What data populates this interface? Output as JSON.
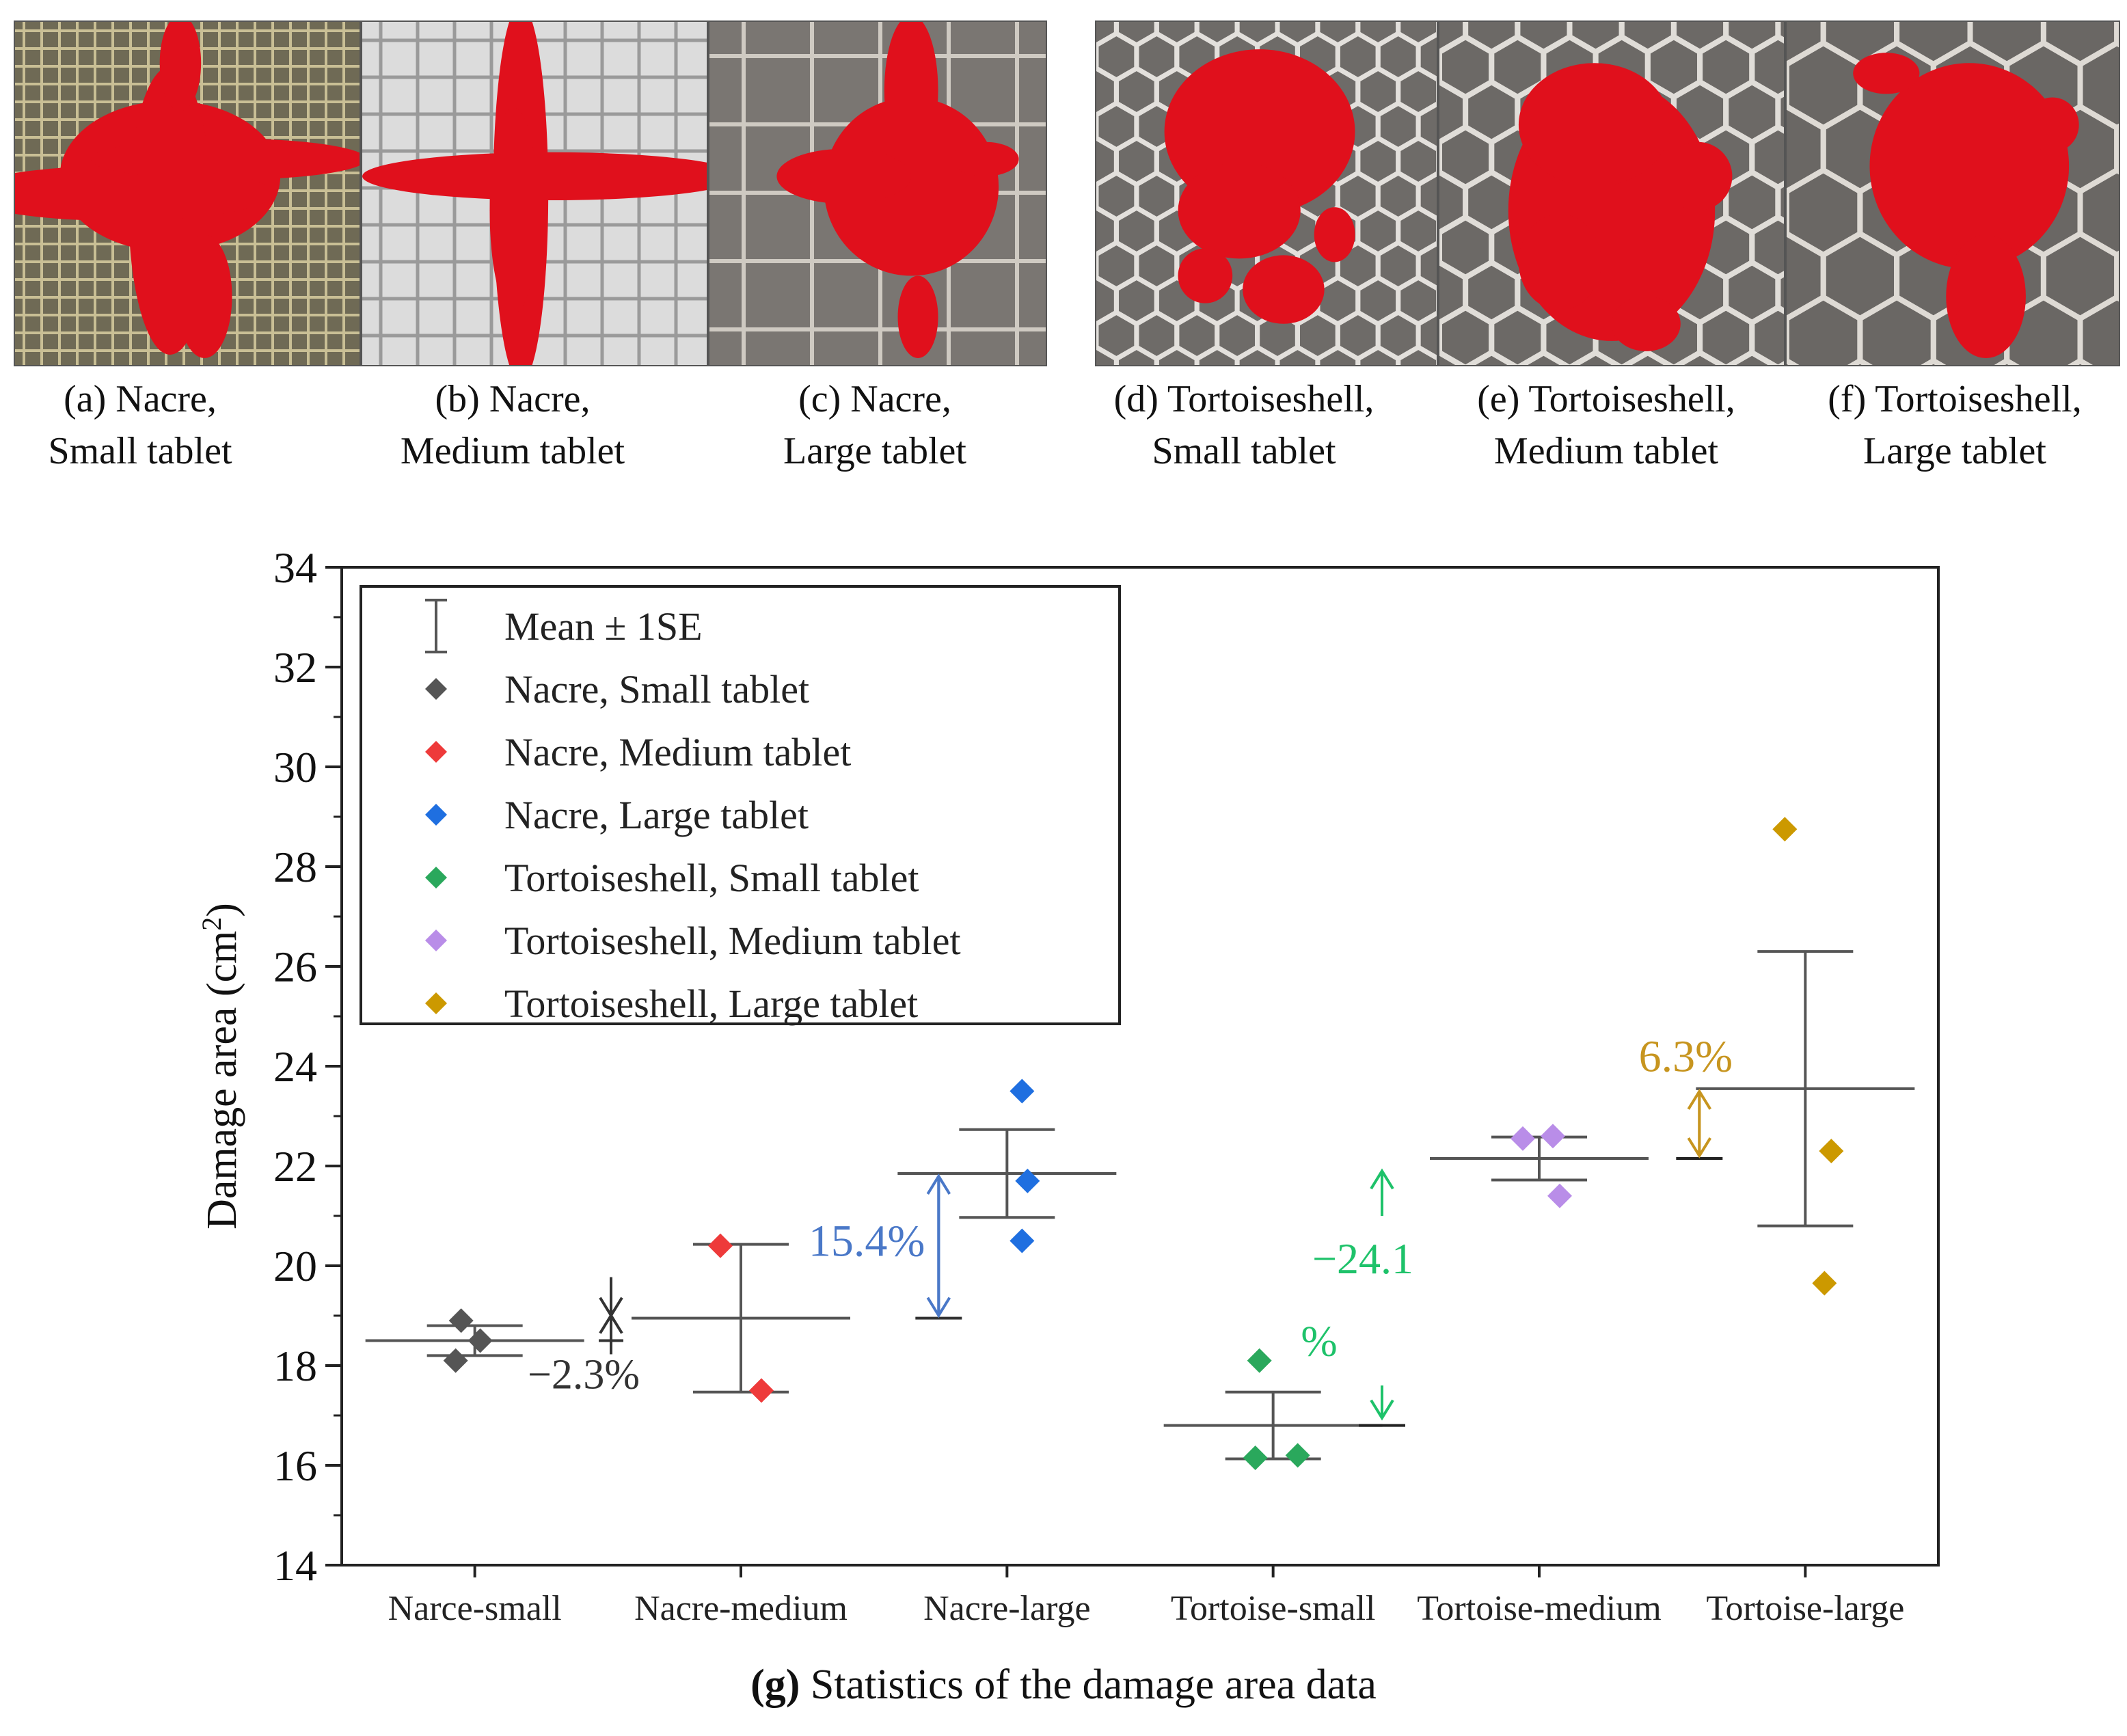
{
  "panels": [
    {
      "id": "a",
      "label_line1": "(a) Nacre,",
      "label_line2": "Small tablet",
      "pattern": "grid-fine",
      "bg": "#6f6a55",
      "line_color": "#c9bf95"
    },
    {
      "id": "b",
      "label_line1": "(b) Nacre,",
      "label_line2": "Medium tablet",
      "pattern": "grid-medium",
      "bg": "#dcdcdc",
      "line_color": "#9a9a9a"
    },
    {
      "id": "c",
      "label_line1": "(c) Nacre,",
      "label_line2": "Large tablet",
      "pattern": "grid-large",
      "bg": "#7a7672",
      "line_color": "#cfcac2"
    },
    {
      "id": "d",
      "label_line1": "(d) Tortoiseshell,",
      "label_line2": "Small tablet",
      "pattern": "hex-small",
      "bg": "#6e6b68",
      "line_color": "#e3e0dc"
    },
    {
      "id": "e",
      "label_line1": "(e) Tortoiseshell,",
      "label_line2": "Medium tablet",
      "pattern": "hex-medium",
      "bg": "#6c6966",
      "line_color": "#e0ddd8"
    },
    {
      "id": "f",
      "label_line1": "(f) Tortoiseshell,",
      "label_line2": "Large tablet",
      "pattern": "hex-large",
      "bg": "#6a6764",
      "line_color": "#dedad4"
    }
  ],
  "damage_color": "#e0101c",
  "figure_caption": {
    "letter": "(g)",
    "text": " Statistics of the damage area data"
  },
  "chart_data": {
    "type": "scatter",
    "ylabel": "Damage area (cm",
    "ylabel_sup": "2",
    "ylabel_close": ")",
    "ylim": [
      14,
      34
    ],
    "yticks": [
      14,
      16,
      18,
      20,
      22,
      24,
      26,
      28,
      30,
      32,
      34
    ],
    "grid": false,
    "legend_position": "top-left",
    "categories": [
      "Narce-small",
      "Nacre-medium",
      "Nacre-large",
      "Tortoise-small",
      "Tortoise-medium",
      "Tortoise-large"
    ],
    "legend": [
      {
        "label": "Mean ± 1SE",
        "symbol": "errorbar",
        "color": "#555555"
      },
      {
        "label": "Nacre, Small tablet",
        "symbol": "diamond",
        "color": "#555555"
      },
      {
        "label": "Nacre, Medium tablet",
        "symbol": "diamond",
        "color": "#ee3a3a"
      },
      {
        "label": "Nacre, Large tablet",
        "symbol": "diamond",
        "color": "#1f6fe0"
      },
      {
        "label": "Tortoiseshell, Small tablet",
        "symbol": "diamond",
        "color": "#2aa85c"
      },
      {
        "label": "Tortoiseshell, Medium tablet",
        "symbol": "diamond",
        "color": "#b98de8"
      },
      {
        "label": "Tortoiseshell, Large tablet",
        "symbol": "diamond",
        "color": "#cc9900"
      }
    ],
    "series": [
      {
        "category": "Narce-small",
        "color": "#555555",
        "mean": 18.5,
        "se": 0.3,
        "points": [
          18.1,
          18.5,
          18.9
        ]
      },
      {
        "category": "Nacre-medium",
        "color": "#ee3a3a",
        "mean": 18.95,
        "se": 1.48,
        "points": [
          17.5,
          20.4
        ]
      },
      {
        "category": "Nacre-large",
        "color": "#1f6fe0",
        "mean": 21.85,
        "se": 0.88,
        "points": [
          20.5,
          21.7,
          23.5
        ]
      },
      {
        "category": "Tortoise-small",
        "color": "#2aa85c",
        "mean": 16.8,
        "se": 0.67,
        "points": [
          16.15,
          16.2,
          18.1
        ]
      },
      {
        "category": "Tortoise-medium",
        "color": "#b98de8",
        "mean": 22.15,
        "se": 0.43,
        "points": [
          21.4,
          22.55,
          22.6
        ]
      },
      {
        "category": "Tortoise-large",
        "color": "#cc9900",
        "mean": 23.55,
        "se": 2.75,
        "points": [
          19.65,
          22.3,
          28.75
        ]
      }
    ],
    "annotations": [
      {
        "text": "−2.3%",
        "color": "#333333",
        "from": 18.5,
        "to": 18.95
      },
      {
        "text": "15.4%",
        "color": "#4a78c8",
        "from": 18.95,
        "to": 21.85
      },
      {
        "text_line1": "−24.1",
        "text_line2": "%",
        "color": "#1ec26a",
        "from": 16.8,
        "to": 22.15
      },
      {
        "text": "6.3%",
        "color": "#c7951f",
        "from": 22.15,
        "to": 23.55
      }
    ]
  }
}
